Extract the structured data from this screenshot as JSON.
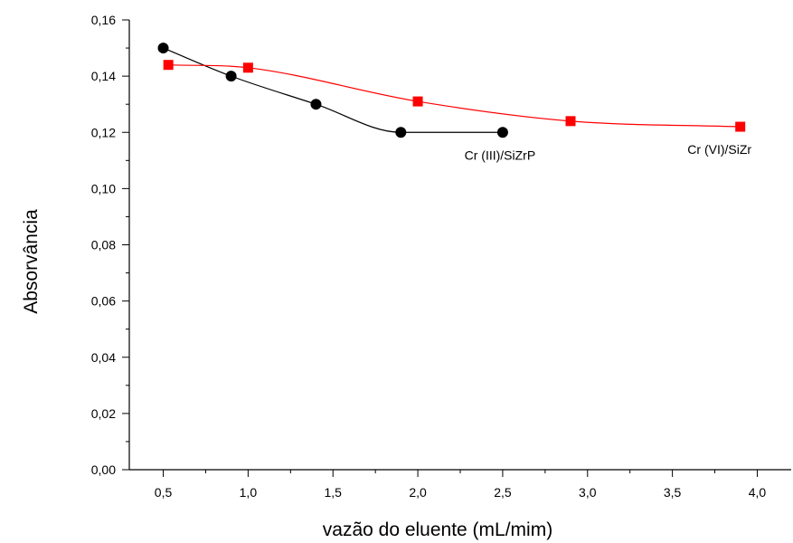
{
  "chart_data": {
    "type": "scatter",
    "xlabel": "vazão do eluente (mL/mim)",
    "ylabel": "Absorvância",
    "xlim": [
      0.3,
      4.2
    ],
    "ylim": [
      0.0,
      0.16
    ],
    "x_ticks": [
      0.5,
      1.0,
      1.5,
      2.0,
      2.5,
      3.0,
      3.5,
      4.0
    ],
    "x_tick_labels": [
      "0,5",
      "1,0",
      "1,5",
      "2,0",
      "2,5",
      "3,0",
      "3,5",
      "4,0"
    ],
    "y_ticks": [
      0.0,
      0.02,
      0.04,
      0.06,
      0.08,
      0.1,
      0.12,
      0.14,
      0.16
    ],
    "y_tick_labels": [
      "0,00",
      "0,02",
      "0,04",
      "0,06",
      "0,08",
      "0,10",
      "0,12",
      "0,14",
      "0,16"
    ],
    "grid": false,
    "series": [
      {
        "name": "Cr (III)/SiZrP",
        "marker": "circle",
        "color": "#000000",
        "line_color": "#000000",
        "x": [
          0.5,
          0.9,
          1.4,
          1.9,
          2.5
        ],
        "y": [
          0.15,
          0.14,
          0.13,
          0.12,
          0.12
        ]
      },
      {
        "name": "Cr (VI)/SiZr",
        "marker": "square",
        "color": "#ff0000",
        "line_color": "#ff0000",
        "x": [
          0.53,
          1.0,
          2.0,
          2.9,
          3.9
        ],
        "y": [
          0.144,
          0.143,
          0.131,
          0.124,
          0.122
        ]
      }
    ]
  }
}
